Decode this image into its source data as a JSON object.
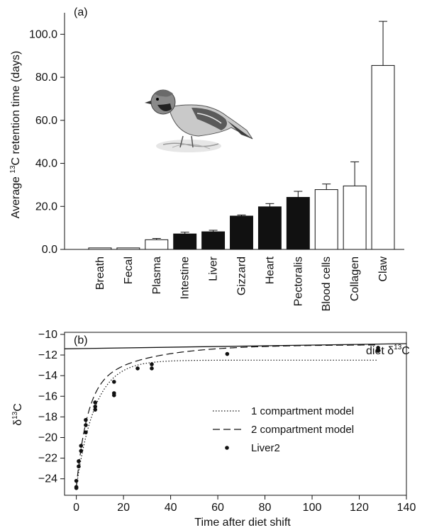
{
  "chart_data": [
    {
      "panel": "(a)",
      "type": "bar",
      "ylabel_pre": "Average ",
      "ylabel_sup": "13",
      "ylabel_post": "C retention time (days)",
      "ylim": [
        0,
        110
      ],
      "yticks": [
        "0.0",
        "20.0",
        "40.0",
        "60.0",
        "80.0",
        "100.0"
      ],
      "yticks_values": [
        0,
        20,
        40,
        60,
        80,
        100
      ],
      "categories": [
        "Breath",
        "Fecal",
        "Plasma",
        "Intestine",
        "Liver",
        "Gizzard",
        "Heart",
        "Pectoralis",
        "Blood cells",
        "Collagen",
        "Claw"
      ],
      "values": [
        0.7,
        0.7,
        4.5,
        7.2,
        8.2,
        15.5,
        19.8,
        24.2,
        27.8,
        29.5,
        85.5
      ],
      "errors": [
        0,
        0,
        0.6,
        0.8,
        0.7,
        0.5,
        1.5,
        2.8,
        2.6,
        11.2,
        20.5
      ],
      "fill": [
        "white",
        "white",
        "white",
        "black",
        "black",
        "black",
        "black",
        "black",
        "white",
        "white",
        "white"
      ]
    },
    {
      "panel": "(b)",
      "type": "scatter",
      "xlabel": "Time after diet shift",
      "ylabel_main": "δ",
      "ylabel_sup": "13",
      "ylabel_post": "C",
      "xlim": [
        -5,
        140
      ],
      "ylim": [
        -25.6,
        -9.8
      ],
      "xticks": [
        0,
        20,
        40,
        60,
        80,
        100,
        120,
        140
      ],
      "yticks": [
        -24,
        -22,
        -20,
        -18,
        -16,
        -14,
        -12,
        -10
      ],
      "diet_label_pre": "diet δ",
      "diet_label_sup": "13",
      "diet_label_post": "C",
      "diet_line": {
        "x": [
          0,
          140
        ],
        "y": [
          -11.4,
          -10.9
        ]
      },
      "legend": [
        {
          "label": "1 compartment model",
          "style": "dotted"
        },
        {
          "label": "2 compartment model",
          "style": "dashed"
        },
        {
          "label": "Liver2",
          "style": "point"
        }
      ],
      "series": [
        {
          "name": "Liver2",
          "points": [
            [
              0,
              -24.2
            ],
            [
              0,
              -24.8
            ],
            [
              0,
              -24.9
            ],
            [
              1,
              -22.3
            ],
            [
              1,
              -22.8
            ],
            [
              2,
              -20.8
            ],
            [
              2,
              -21.3
            ],
            [
              4,
              -18.3
            ],
            [
              4,
              -18.8
            ],
            [
              4,
              -19.5
            ],
            [
              8,
              -16.6
            ],
            [
              8,
              -17.0
            ],
            [
              8,
              -17.3
            ],
            [
              16,
              -14.6
            ],
            [
              16,
              -15.7
            ],
            [
              16,
              -15.9
            ],
            [
              26,
              -13.3
            ],
            [
              32,
              -12.9
            ],
            [
              32,
              -13.3
            ],
            [
              64,
              -11.9
            ],
            [
              128,
              -11.3
            ],
            [
              128,
              -11.6
            ]
          ]
        }
      ],
      "model1": {
        "y_final": -12.5,
        "y_init": -24.8,
        "rate": 0.125
      },
      "model2": {
        "y_final": -11.0,
        "y_init": -24.8,
        "a_fast": 9.5,
        "k_fast": 0.22,
        "a_slow": 4.3,
        "k_slow": 0.04
      }
    }
  ],
  "bird_image": "sparrow-illustration"
}
